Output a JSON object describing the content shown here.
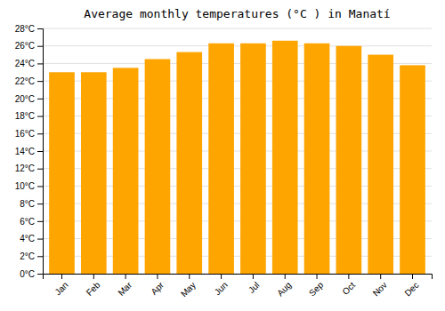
{
  "chart_data": {
    "type": "bar",
    "title": "Average monthly temperatures (°C ) in Manatí",
    "categories": [
      "Jan",
      "Feb",
      "Mar",
      "Apr",
      "May",
      "Jun",
      "Jul",
      "Aug",
      "Sep",
      "Oct",
      "Nov",
      "Dec"
    ],
    "values": [
      23.0,
      23.0,
      23.5,
      24.5,
      25.3,
      26.3,
      26.3,
      26.6,
      26.3,
      26.0,
      25.0,
      23.8
    ],
    "color": "#FFA500",
    "ylim": [
      0,
      28
    ],
    "yticks": [
      {
        "value": 0,
        "label": "0°C"
      },
      {
        "value": 2,
        "label": "2°C"
      },
      {
        "value": 4,
        "label": "4°C"
      },
      {
        "value": 6,
        "label": "6°C"
      },
      {
        "value": 8,
        "label": "8°C"
      },
      {
        "value": 10,
        "label": "10°C"
      },
      {
        "value": 12,
        "label": "12°C"
      },
      {
        "value": 14,
        "label": "14°C"
      },
      {
        "value": 16,
        "label": "16°C"
      },
      {
        "value": 18,
        "label": "18°C"
      },
      {
        "value": 20,
        "label": "20°C"
      },
      {
        "value": 22,
        "label": "22°C"
      },
      {
        "value": 24,
        "label": "24°C"
      },
      {
        "value": 26,
        "label": "26°C"
      },
      {
        "value": 28,
        "label": "28°C"
      }
    ],
    "grid": true
  }
}
